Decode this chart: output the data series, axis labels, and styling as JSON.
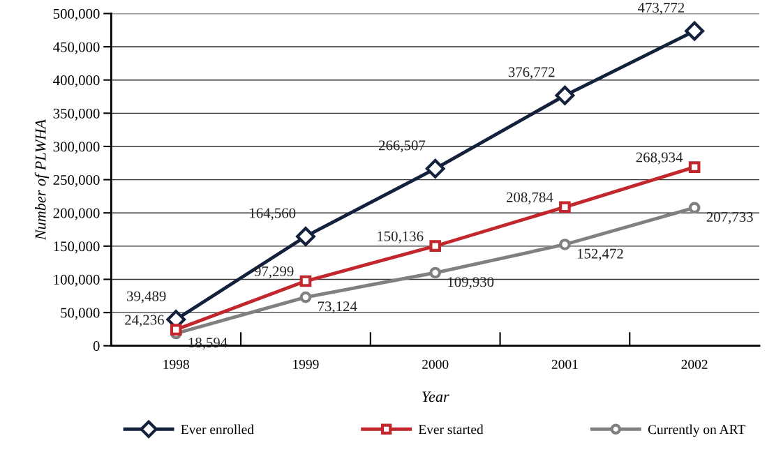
{
  "chart_data": {
    "type": "line",
    "xlabel": "Year",
    "ylabel": "Number of PLWHA",
    "categories": [
      "1998",
      "1999",
      "2000",
      "2001",
      "2002"
    ],
    "series": [
      {
        "name": "Ever enrolled",
        "color": "#14213d",
        "marker": "diamond",
        "values": [
          39489,
          164560,
          266507,
          376772,
          473772
        ],
        "value_labels": [
          "39,489",
          "164,560",
          "266,507",
          "376,772",
          "473,772"
        ]
      },
      {
        "name": "Ever started",
        "color": "#c1272d",
        "marker": "square",
        "values": [
          24236,
          97299,
          150136,
          208784,
          268934
        ],
        "value_labels": [
          "24,236",
          "97,299",
          "150,136",
          "208,784",
          "268,934"
        ]
      },
      {
        "name": "Currently on ART",
        "color": "#808080",
        "marker": "circle",
        "values": [
          18594,
          73124,
          109930,
          152472,
          207733
        ],
        "value_labels": [
          "18,594",
          "73,124",
          "109,930",
          "152,472",
          "207,733"
        ]
      }
    ],
    "ylim": [
      0,
      500000
    ],
    "yticks": [
      {
        "value": 0,
        "label": "0"
      },
      {
        "value": 50000,
        "label": "50,000"
      },
      {
        "value": 100000,
        "label": "100,000"
      },
      {
        "value": 150000,
        "label": "150,000"
      },
      {
        "value": 200000,
        "label": "200,000"
      },
      {
        "value": 250000,
        "label": "250,000"
      },
      {
        "value": 300000,
        "label": "300,000"
      },
      {
        "value": 350000,
        "label": "350,000"
      },
      {
        "value": 400000,
        "label": "400,000"
      },
      {
        "value": 450000,
        "label": "450,000"
      },
      {
        "value": 500000,
        "label": "500,000"
      }
    ],
    "grid": "y",
    "legend": "bottom",
    "line_style": "solid"
  }
}
